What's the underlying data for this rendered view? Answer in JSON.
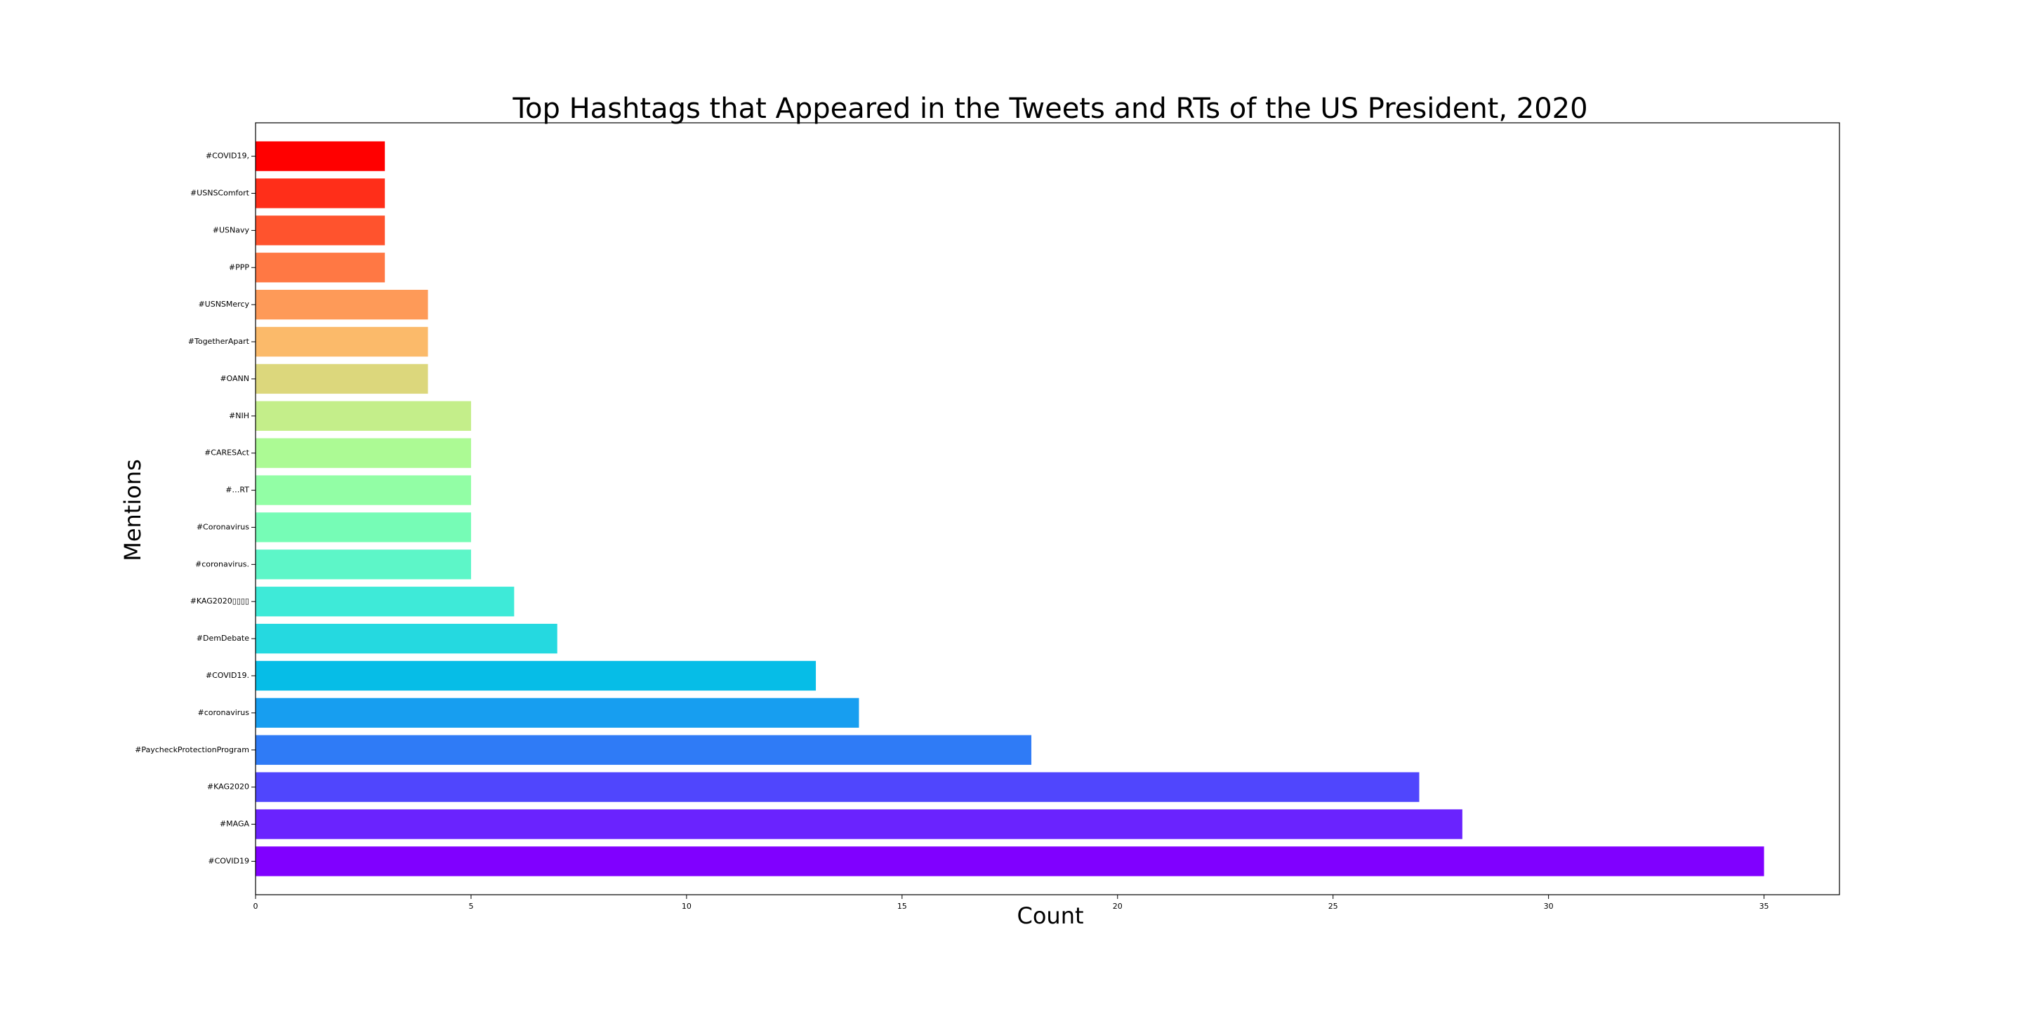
{
  "chart_data": {
    "type": "bar",
    "orientation": "horizontal",
    "title": "Top Hashtags that Appeared in the Tweets and RTs of the US President, 2020",
    "xlabel": "Count",
    "ylabel": "Mentions",
    "xlim": [
      0,
      36.75
    ],
    "xticks": [
      "0",
      "5",
      "10",
      "15",
      "20",
      "25",
      "30",
      "35"
    ],
    "grid": false,
    "legend": false,
    "categories": [
      "#COVID19",
      "#MAGA",
      "#KAG2020",
      "#PaycheckProtectionProgram",
      "#coronavirus",
      "#COVID19.",
      "#DemDebate",
      "#KAG2020▯▯▯▯",
      "#coronavirus.",
      "#Coronavirus",
      "#…RT",
      "#CARESAct",
      "#NIH",
      "#OANN",
      "#TogetherApart",
      "#USNSMercy",
      "#PPP",
      "#USNavy",
      "#USNSComfort",
      "#COVID19,"
    ],
    "values": [
      35,
      28,
      27,
      18,
      14,
      13,
      7,
      6,
      5,
      5,
      5,
      5,
      5,
      4,
      4,
      4,
      3,
      3,
      3,
      3
    ],
    "colors": [
      "#8000ff",
      "#6a23fe",
      "#5046fd",
      "#2f7bf6",
      "#179ef0",
      "#06bde7",
      "#25d9e0",
      "#3eead8",
      "#5df6c8",
      "#76fcb6",
      "#92fea5",
      "#acfa94",
      "#c4ee8a",
      "#dcd77c",
      "#fbba6a",
      "#fe9a58",
      "#ff7844",
      "#ff532d",
      "#ff2e19",
      "#ff0000"
    ]
  }
}
